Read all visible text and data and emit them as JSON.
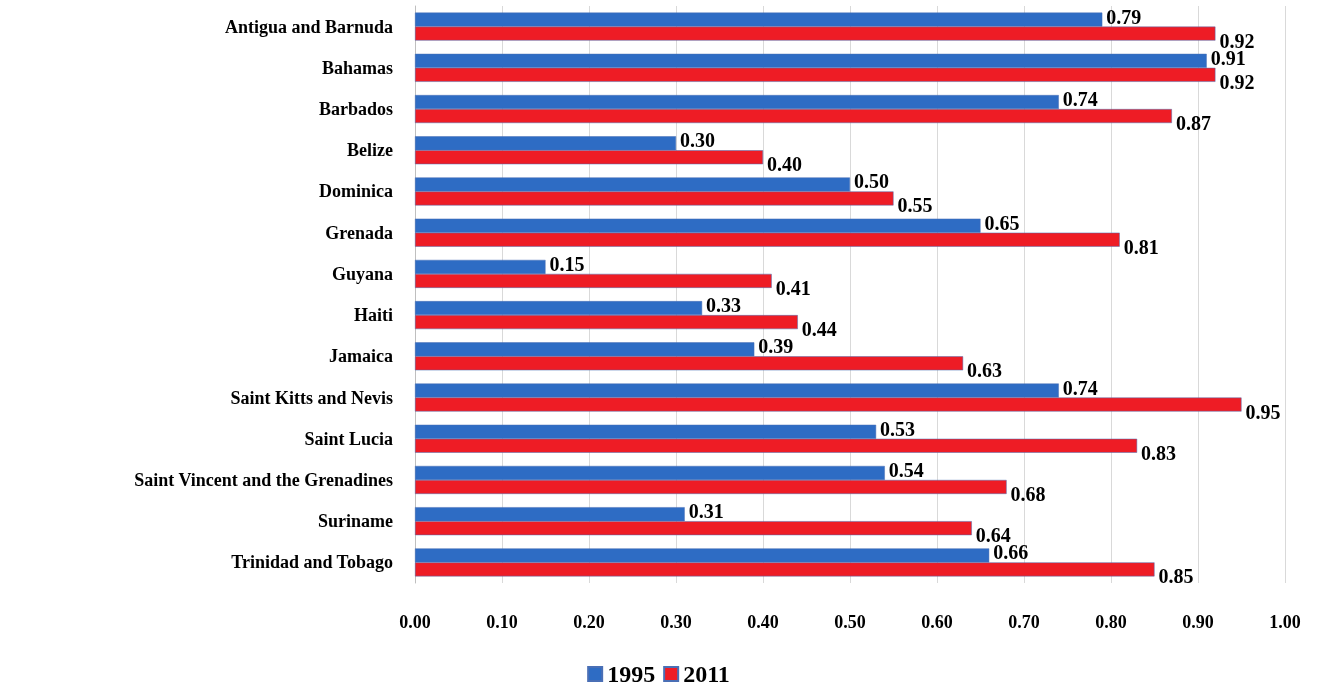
{
  "chart_data": {
    "type": "bar",
    "orientation": "horizontal",
    "categories": [
      "Antigua and Barnuda",
      "Bahamas",
      "Barbados",
      "Belize",
      "Dominica",
      "Grenada",
      "Guyana",
      "Haiti",
      "Jamaica",
      "Saint Kitts and Nevis",
      "Saint Lucia",
      "Saint Vincent and the Grenadines",
      "Suriname",
      "Trinidad and Tobago"
    ],
    "series": [
      {
        "name": "1995",
        "color": "#2e6cc4",
        "values": [
          0.79,
          0.91,
          0.74,
          0.3,
          0.5,
          0.65,
          0.15,
          0.33,
          0.39,
          0.74,
          0.53,
          0.54,
          0.31,
          0.66
        ],
        "value_labels": [
          "0.79",
          "0.91",
          "0.74",
          "0.30",
          "0.50",
          "0.65",
          "0.15",
          "0.33",
          "0.39",
          "0.74",
          "0.53",
          "0.54",
          "0.31",
          "0.66"
        ]
      },
      {
        "name": "2011",
        "color": "#ee1c25",
        "values": [
          0.92,
          0.92,
          0.87,
          0.4,
          0.55,
          0.81,
          0.41,
          0.44,
          0.63,
          0.95,
          0.83,
          0.68,
          0.64,
          0.85
        ],
        "value_labels": [
          "0.92",
          "0.92",
          "0.87",
          "0.40",
          "0.55",
          "0.81",
          "0.41",
          "0.44",
          "0.63",
          "0.95",
          "0.83",
          "0.68",
          "0.64",
          "0.85"
        ]
      }
    ],
    "xlim": [
      0,
      1
    ],
    "xticks": [
      {
        "value": 0,
        "label": "0.00"
      },
      {
        "value": 0.1,
        "label": "0.10"
      },
      {
        "value": 0.2,
        "label": "0.20"
      },
      {
        "value": 0.3,
        "label": "0.30"
      },
      {
        "value": 0.4,
        "label": "0.40"
      },
      {
        "value": 0.5,
        "label": "0.50"
      },
      {
        "value": 0.6,
        "label": "0.60"
      },
      {
        "value": 0.7,
        "label": "0.70"
      },
      {
        "value": 0.8,
        "label": "0.80"
      },
      {
        "value": 0.9,
        "label": "0.90"
      },
      {
        "value": 1,
        "label": "1.00"
      }
    ],
    "grid": "x",
    "legend": "bottom"
  }
}
